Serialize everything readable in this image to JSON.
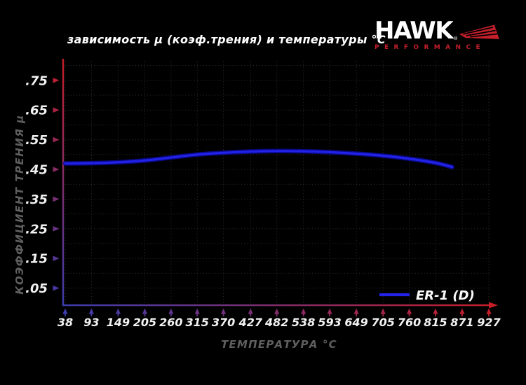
{
  "page": {
    "background": "#000000"
  },
  "logo": {
    "brand": "HAWK",
    "registered_mark": "®",
    "subtitle": "PERFORMANCE",
    "text_color": "#ffffff",
    "accent_color": "#c41f2b"
  },
  "chart_data": {
    "type": "line",
    "title": "зависимость μ (коэф.трения) и температуры °C",
    "xlabel": "ТЕМПЕРАТУРА °C",
    "ylabel": "КОЭФФИЦИЕНТ ТРЕНИЯ μ",
    "x_tick_labels": [
      "38",
      "93",
      "149",
      "205",
      "260",
      "315",
      "370",
      "427",
      "482",
      "538",
      "593",
      "649",
      "705",
      "760",
      "815",
      "871",
      "927"
    ],
    "x_tick_values": [
      38,
      93,
      149,
      205,
      260,
      315,
      370,
      427,
      482,
      538,
      593,
      649,
      705,
      760,
      815,
      871,
      927
    ],
    "y_tick_labels": [
      ".05",
      ".15",
      ".25",
      ".35",
      ".45",
      ".55",
      ".65",
      ".75"
    ],
    "y_tick_values": [
      0.05,
      0.15,
      0.25,
      0.35,
      0.45,
      0.55,
      0.65,
      0.75
    ],
    "xlim": [
      38,
      927
    ],
    "ylim": [
      0,
      0.8
    ],
    "grid": {
      "style": "dotted",
      "color": "#2b2b2b",
      "y_step": 0.05,
      "x_step": "every-tick"
    },
    "axes": {
      "hot_color": "#c81e28",
      "cold_color": "#3c3caf",
      "description": "y-axis red at top to blue at bottom; x-axis blue at left to red at right; arrow tick marks colored along same gradient"
    },
    "series": [
      {
        "name": "ER-1 (D)",
        "color": "#2222e8",
        "halo_color": "#0b0b9e",
        "points": [
          [
            38,
            0.47
          ],
          [
            93,
            0.471
          ],
          [
            149,
            0.474
          ],
          [
            205,
            0.48
          ],
          [
            260,
            0.49
          ],
          [
            315,
            0.5
          ],
          [
            370,
            0.506
          ],
          [
            427,
            0.51
          ],
          [
            482,
            0.512
          ],
          [
            538,
            0.511
          ],
          [
            593,
            0.508
          ],
          [
            649,
            0.503
          ],
          [
            705,
            0.496
          ],
          [
            760,
            0.486
          ],
          [
            815,
            0.472
          ],
          [
            850,
            0.458
          ]
        ]
      }
    ],
    "legend": {
      "position": "bottom-right",
      "label": "ER-1 (D)"
    },
    "tick_text_color": "#f2f2f2",
    "axis_title_color": "#5f5f5f"
  }
}
